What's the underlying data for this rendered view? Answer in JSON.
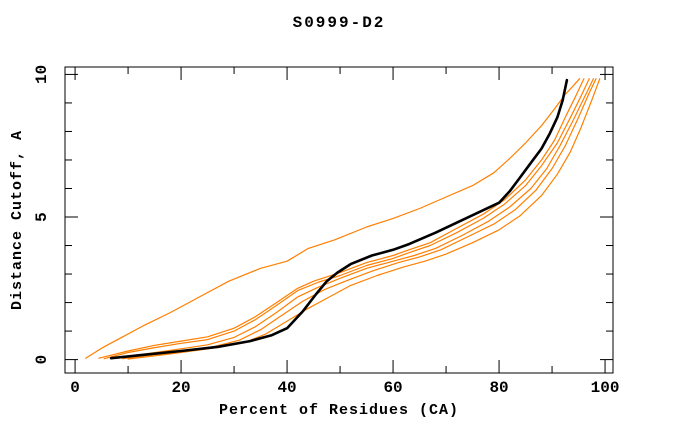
{
  "figure": {
    "background": "#ffffff",
    "border_color": "#000000"
  },
  "chart_data": {
    "type": "line",
    "title": "S0999-D2",
    "xlabel": "Percent of Residues (CA)",
    "ylabel": "Distance Cutoff, A",
    "x_axis": {
      "range": [
        -1.9,
        101.5
      ],
      "major_ticks": [
        0,
        20,
        40,
        60,
        80,
        100
      ],
      "major_tick_labels": [
        "0",
        "20",
        "40",
        "60",
        "80",
        "100"
      ],
      "minor_ticks": [
        10,
        30,
        50,
        70,
        90
      ]
    },
    "y_axis": {
      "range": [
        -0.47,
        10.26
      ],
      "major_ticks": [
        0,
        5,
        10
      ],
      "major_tick_labels": [
        "0",
        "5",
        "10"
      ],
      "minor_ticks": [
        1,
        2,
        3,
        4,
        6,
        7,
        8,
        9
      ]
    },
    "grid": false,
    "legend": "none",
    "colors": {
      "model_curves": "#ff7f00",
      "highlight_curve": "#000000"
    },
    "series": [
      {
        "id": "orange-curve-6",
        "color": "#ff7f00",
        "width": 1.2,
        "points": [
          [
            10,
            0.02
          ],
          [
            18,
            0.2
          ],
          [
            26,
            0.4
          ],
          [
            32,
            0.6
          ],
          [
            36,
            0.9
          ],
          [
            40,
            1.35
          ],
          [
            44,
            1.8
          ],
          [
            48,
            2.2
          ],
          [
            52,
            2.6
          ],
          [
            57,
            2.95
          ],
          [
            62,
            3.25
          ],
          [
            66,
            3.45
          ],
          [
            70,
            3.7
          ],
          [
            75,
            4.1
          ],
          [
            80,
            4.55
          ],
          [
            84,
            5.05
          ],
          [
            88,
            5.75
          ],
          [
            91,
            6.5
          ],
          [
            93.5,
            7.3
          ],
          [
            95.5,
            8.15
          ],
          [
            97.5,
            9.1
          ],
          [
            99,
            9.85
          ]
        ]
      },
      {
        "id": "orange-curve-5",
        "color": "#ff7f00",
        "width": 1.2,
        "points": [
          [
            9,
            0.03
          ],
          [
            15,
            0.18
          ],
          [
            21,
            0.3
          ],
          [
            26,
            0.45
          ],
          [
            31,
            0.68
          ],
          [
            35,
            1.05
          ],
          [
            39,
            1.55
          ],
          [
            43,
            2.05
          ],
          [
            47,
            2.45
          ],
          [
            51,
            2.75
          ],
          [
            56,
            3.1
          ],
          [
            61,
            3.4
          ],
          [
            65,
            3.6
          ],
          [
            69,
            3.85
          ],
          [
            74,
            4.3
          ],
          [
            79,
            4.75
          ],
          [
            83,
            5.25
          ],
          [
            87,
            5.95
          ],
          [
            90,
            6.7
          ],
          [
            92.5,
            7.5
          ],
          [
            95,
            8.5
          ],
          [
            97,
            9.35
          ],
          [
            98.3,
            9.85
          ]
        ]
      },
      {
        "id": "orange-curve-4",
        "color": "#ff7f00",
        "width": 1.2,
        "points": [
          [
            8,
            0.05
          ],
          [
            14,
            0.22
          ],
          [
            20,
            0.38
          ],
          [
            25,
            0.52
          ],
          [
            30,
            0.78
          ],
          [
            34,
            1.15
          ],
          [
            38,
            1.65
          ],
          [
            42,
            2.2
          ],
          [
            46,
            2.55
          ],
          [
            50,
            2.85
          ],
          [
            55,
            3.2
          ],
          [
            60,
            3.45
          ],
          [
            64,
            3.65
          ],
          [
            68,
            3.9
          ],
          [
            73,
            4.35
          ],
          [
            78,
            4.85
          ],
          [
            82,
            5.35
          ],
          [
            86,
            6.0
          ],
          [
            89,
            6.7
          ],
          [
            91.5,
            7.5
          ],
          [
            94,
            8.4
          ],
          [
            96.5,
            9.35
          ],
          [
            97.8,
            9.85
          ]
        ]
      },
      {
        "id": "orange-curve-3",
        "color": "#ff7f00",
        "width": 1.2,
        "points": [
          [
            5.5,
            0.03
          ],
          [
            10,
            0.25
          ],
          [
            15,
            0.42
          ],
          [
            20,
            0.57
          ],
          [
            25,
            0.7
          ],
          [
            30,
            1.0
          ],
          [
            34,
            1.4
          ],
          [
            38,
            1.9
          ],
          [
            42,
            2.42
          ],
          [
            46,
            2.72
          ],
          [
            50,
            2.95
          ],
          [
            55,
            3.3
          ],
          [
            60,
            3.55
          ],
          [
            63,
            3.75
          ],
          [
            67,
            4.0
          ],
          [
            72,
            4.45
          ],
          [
            77,
            4.95
          ],
          [
            81,
            5.45
          ],
          [
            85,
            6.1
          ],
          [
            88,
            6.8
          ],
          [
            91,
            7.6
          ],
          [
            93.5,
            8.5
          ],
          [
            95.5,
            9.25
          ],
          [
            97,
            9.85
          ]
        ]
      },
      {
        "id": "orange-curve-2",
        "color": "#ff7f00",
        "width": 1.2,
        "points": [
          [
            4.5,
            0.05
          ],
          [
            10,
            0.3
          ],
          [
            15,
            0.5
          ],
          [
            20,
            0.65
          ],
          [
            25,
            0.8
          ],
          [
            30,
            1.1
          ],
          [
            34,
            1.5
          ],
          [
            38,
            2.0
          ],
          [
            42,
            2.5
          ],
          [
            45,
            2.75
          ],
          [
            50,
            3.05
          ],
          [
            55,
            3.4
          ],
          [
            60,
            3.65
          ],
          [
            63,
            3.85
          ],
          [
            67,
            4.1
          ],
          [
            72,
            4.6
          ],
          [
            77,
            5.1
          ],
          [
            81,
            5.6
          ],
          [
            85,
            6.3
          ],
          [
            88,
            7.0
          ],
          [
            90.5,
            7.7
          ],
          [
            92.5,
            8.5
          ],
          [
            94.5,
            9.25
          ],
          [
            96,
            9.85
          ]
        ]
      },
      {
        "id": "orange-curve-1-outlier",
        "color": "#ff7f00",
        "width": 1.2,
        "points": [
          [
            2,
            0.05
          ],
          [
            5,
            0.4
          ],
          [
            9,
            0.8
          ],
          [
            13,
            1.2
          ],
          [
            18,
            1.65
          ],
          [
            24,
            2.25
          ],
          [
            29,
            2.75
          ],
          [
            35,
            3.2
          ],
          [
            40,
            3.45
          ],
          [
            44,
            3.9
          ],
          [
            49,
            4.2
          ],
          [
            55,
            4.65
          ],
          [
            60,
            4.95
          ],
          [
            65,
            5.3
          ],
          [
            70,
            5.7
          ],
          [
            75,
            6.1
          ],
          [
            79,
            6.55
          ],
          [
            82,
            7.05
          ],
          [
            85,
            7.6
          ],
          [
            88,
            8.2
          ],
          [
            90.5,
            8.8
          ],
          [
            92.5,
            9.3
          ],
          [
            94,
            9.6
          ],
          [
            95.2,
            9.85
          ]
        ]
      },
      {
        "id": "black-curve",
        "color": "#000000",
        "width": 2.6,
        "points": [
          [
            6.8,
            0.05
          ],
          [
            12,
            0.15
          ],
          [
            20,
            0.3
          ],
          [
            27,
            0.45
          ],
          [
            33,
            0.65
          ],
          [
            37,
            0.85
          ],
          [
            40,
            1.1
          ],
          [
            43,
            1.7
          ],
          [
            45.5,
            2.3
          ],
          [
            47.5,
            2.75
          ],
          [
            49.5,
            3.05
          ],
          [
            52,
            3.35
          ],
          [
            56,
            3.65
          ],
          [
            60,
            3.85
          ],
          [
            63,
            4.05
          ],
          [
            68,
            4.45
          ],
          [
            72,
            4.8
          ],
          [
            76,
            5.15
          ],
          [
            80,
            5.5
          ],
          [
            82,
            5.9
          ],
          [
            84,
            6.4
          ],
          [
            86,
            6.9
          ],
          [
            88,
            7.4
          ],
          [
            89.5,
            7.9
          ],
          [
            91,
            8.5
          ],
          [
            92,
            9.1
          ],
          [
            92.8,
            9.8
          ]
        ]
      }
    ]
  }
}
